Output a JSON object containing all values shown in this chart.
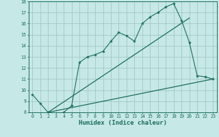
{
  "xlabel": "Humidex (Indice chaleur)",
  "xlim": [
    -0.5,
    23.5
  ],
  "ylim": [
    8,
    18
  ],
  "yticks": [
    8,
    9,
    10,
    11,
    12,
    13,
    14,
    15,
    16,
    17,
    18
  ],
  "xticks": [
    0,
    1,
    2,
    3,
    4,
    5,
    6,
    7,
    8,
    9,
    10,
    11,
    12,
    13,
    14,
    15,
    16,
    17,
    18,
    19,
    20,
    21,
    22,
    23
  ],
  "bg_color": "#c6e8e6",
  "grid_color": "#a0c8c4",
  "line_color": "#1a6b5e",
  "line1_x": [
    0,
    1,
    2,
    3,
    4,
    5,
    6,
    7,
    8,
    9,
    10,
    11,
    12,
    13,
    14,
    15,
    16,
    17,
    18,
    19,
    20,
    21,
    22,
    23
  ],
  "line1_y": [
    9.6,
    8.8,
    8.0,
    7.8,
    8.0,
    8.6,
    12.5,
    13.0,
    13.2,
    13.5,
    14.4,
    15.2,
    14.9,
    14.4,
    16.0,
    16.6,
    17.0,
    17.5,
    17.8,
    16.3,
    14.3,
    11.3,
    11.2,
    11.0
  ],
  "line2_x": [
    2,
    20
  ],
  "line2_y": [
    8.0,
    16.5
  ],
  "line3_x": [
    2,
    23
  ],
  "line3_y": [
    8.0,
    11.0
  ],
  "font_size_label": 6.5,
  "font_size_tick": 4.8
}
